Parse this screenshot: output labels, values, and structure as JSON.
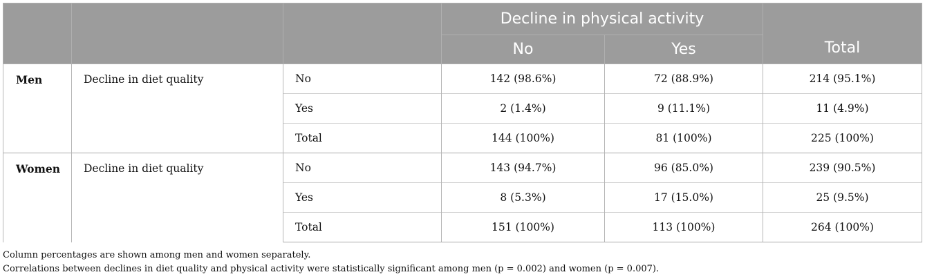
{
  "header": {
    "spanning_label": "Decline in physical activity",
    "col_no": "No",
    "col_yes": "Yes",
    "col_total": "Total"
  },
  "groups": [
    {
      "label": "Men",
      "variable": "Decline in diet quality",
      "rows": [
        {
          "label": "No",
          "no": "142 (98.6%)",
          "yes": "72 (88.9%)",
          "total": "214 (95.1%)"
        },
        {
          "label": "Yes",
          "no": "2 (1.4%)",
          "yes": "9 (11.1%)",
          "total": "11 (4.9%)"
        },
        {
          "label": "Total",
          "no": "144 (100%)",
          "yes": "81 (100%)",
          "total": "225 (100%)"
        }
      ]
    },
    {
      "label": "Women",
      "variable": "Decline in diet quality",
      "rows": [
        {
          "label": "No",
          "no": "143 (94.7%)",
          "yes": "96 (85.0%)",
          "total": "239 (90.5%)"
        },
        {
          "label": "Yes",
          "no": "8 (5.3%)",
          "yes": "17 (15.0%)",
          "total": "25 (9.5%)"
        },
        {
          "label": "Total",
          "no": "151 (100%)",
          "yes": "113 (100%)",
          "total": "264 (100%)"
        }
      ]
    }
  ],
  "notes": [
    "Column percentages are shown among men and women separately.",
    "Correlations between declines in diet quality and physical activity were statistically significant among men (p = 0.002) and women (p = 0.007)."
  ]
}
